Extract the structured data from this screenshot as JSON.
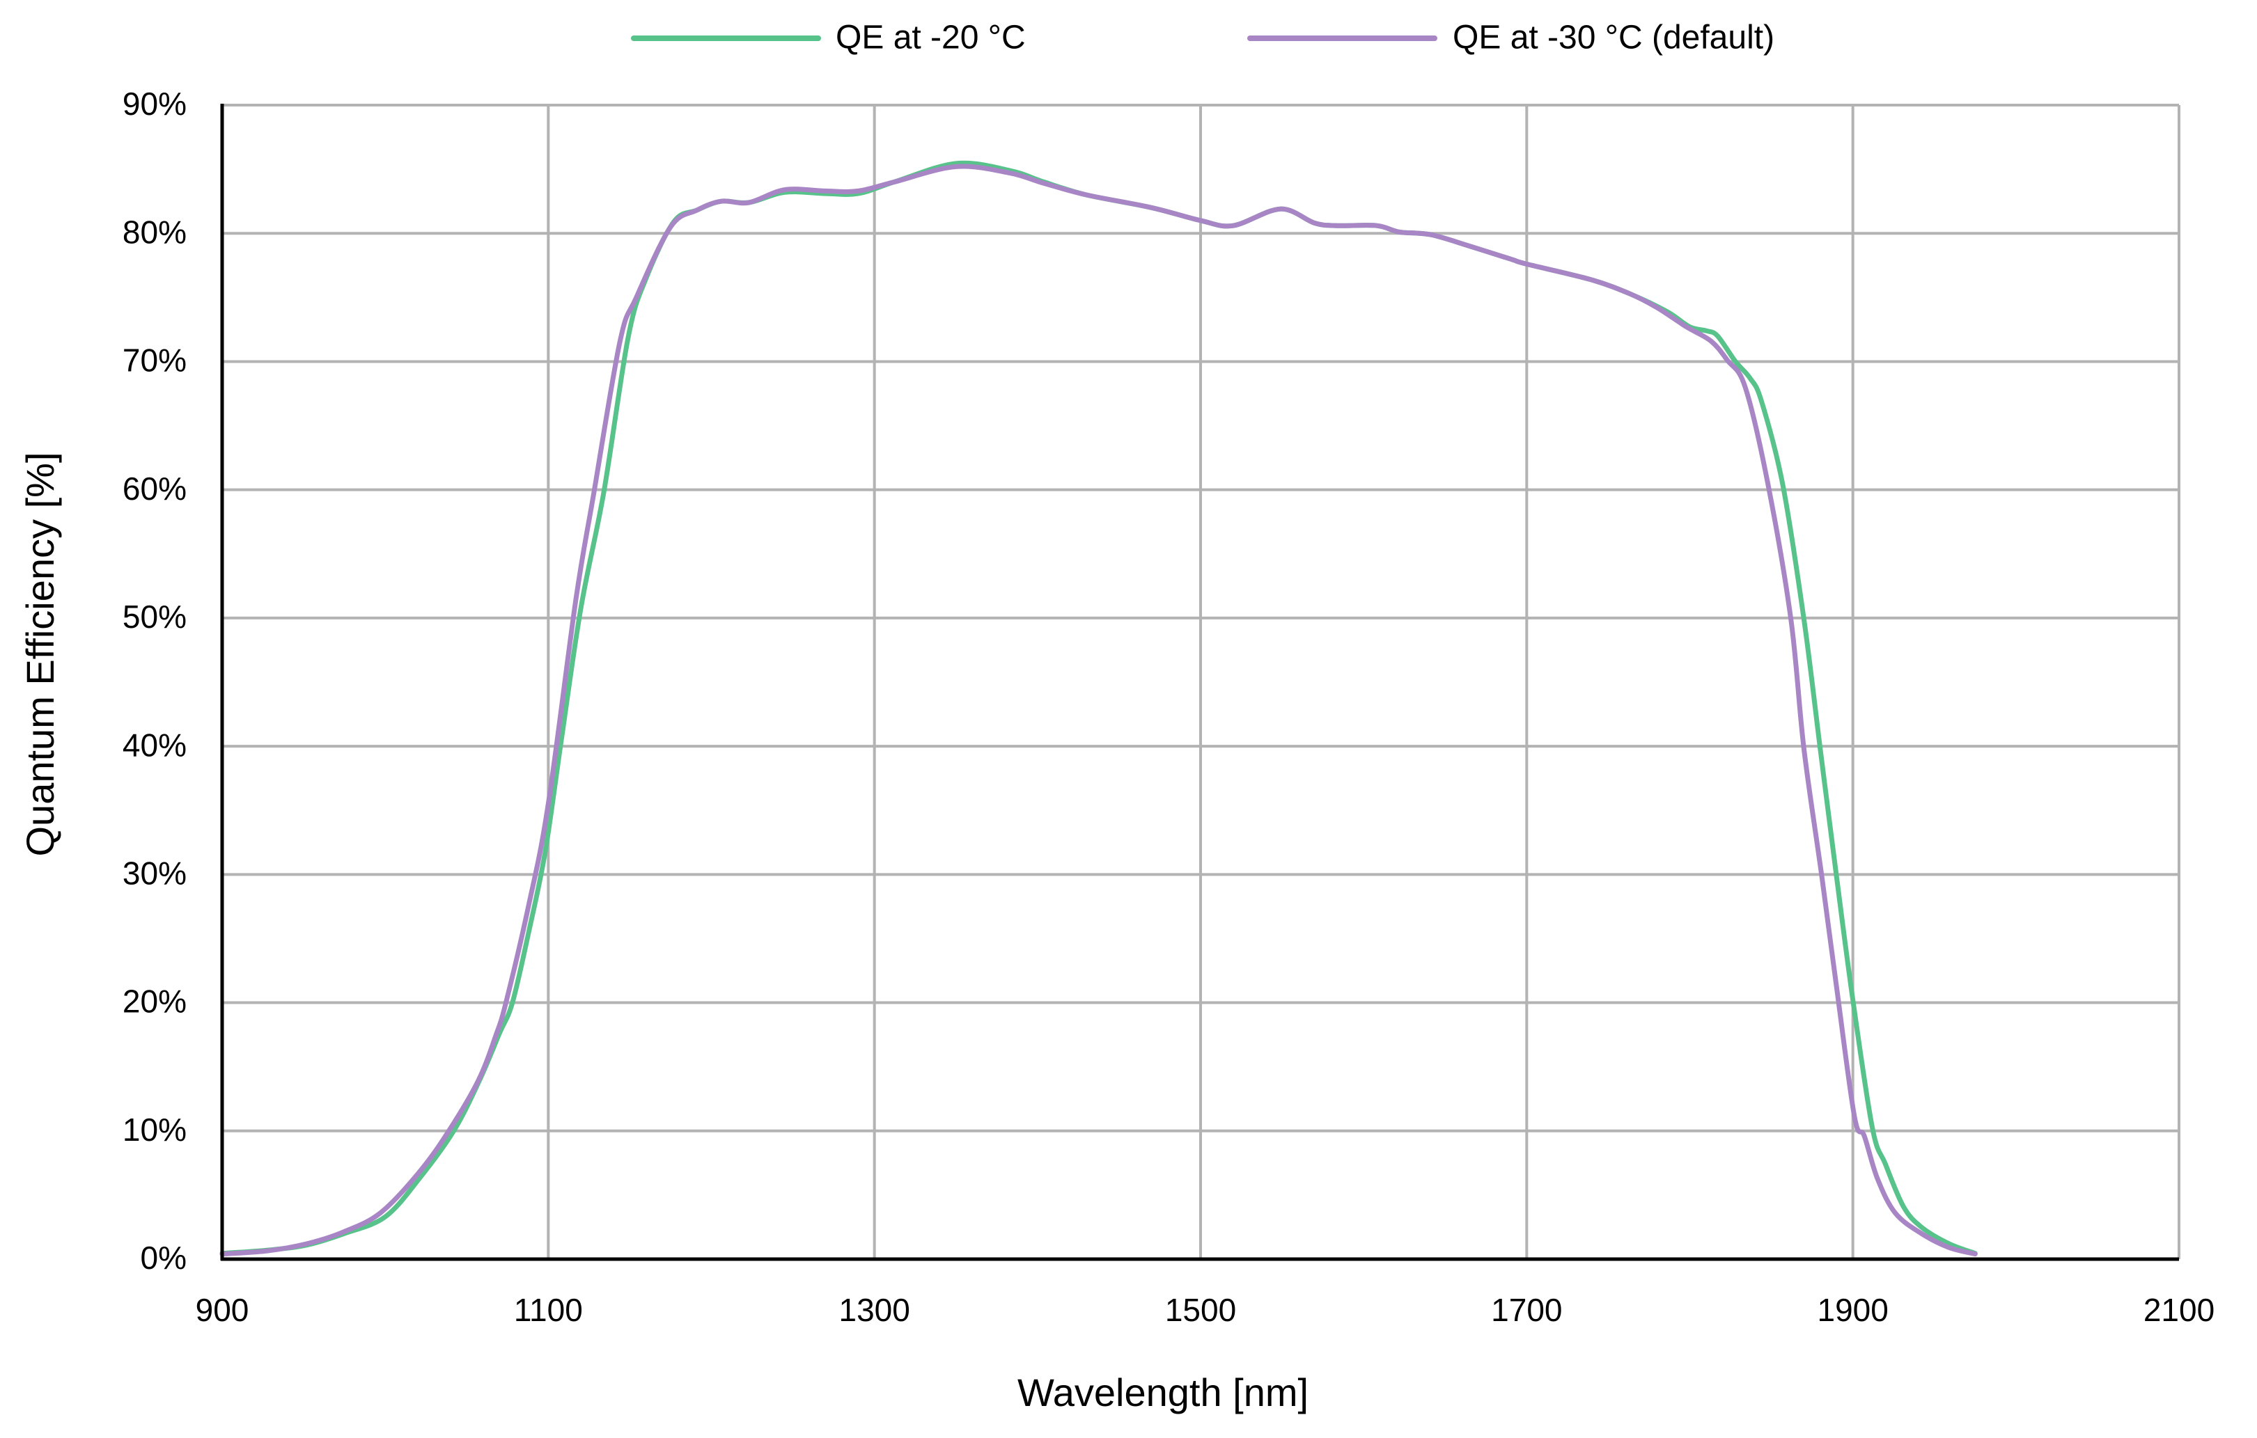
{
  "chart_data": {
    "type": "line",
    "title": "",
    "xlabel": "Wavelength [nm]",
    "ylabel": "Quantum Efficiency [%]",
    "xlim": [
      900,
      2100
    ],
    "ylim": [
      0,
      90
    ],
    "x_ticks": [
      900,
      1100,
      1300,
      1500,
      1700,
      1900,
      2100
    ],
    "x_tick_labels": [
      "900",
      "1100",
      "1300",
      "1500",
      "1700",
      "1900",
      "2100"
    ],
    "y_ticks": [
      0,
      10,
      20,
      30,
      40,
      50,
      60,
      70,
      80,
      90
    ],
    "y_tick_labels": [
      "0%",
      "10%",
      "20%",
      "30%",
      "40%",
      "50%",
      "60%",
      "70%",
      "80%",
      "90%"
    ],
    "grid": true,
    "legend_position": "top",
    "series": [
      {
        "name": "QE at -20 °C",
        "color": "#57C28A",
        "points": [
          [
            900,
            0.45
          ],
          [
            928,
            0.7
          ],
          [
            952,
            1.1
          ],
          [
            975,
            2.0
          ],
          [
            1000,
            3.3
          ],
          [
            1021,
            6.3
          ],
          [
            1042,
            10.0
          ],
          [
            1058,
            14.0
          ],
          [
            1070,
            17.6
          ],
          [
            1078,
            20.0
          ],
          [
            1088,
            25.5
          ],
          [
            1098,
            31.7
          ],
          [
            1108,
            40.5
          ],
          [
            1120,
            50.8
          ],
          [
            1134,
            59.8
          ],
          [
            1149,
            71.9
          ],
          [
            1160,
            76.5
          ],
          [
            1177,
            80.9
          ],
          [
            1191,
            81.8
          ],
          [
            1206,
            82.5
          ],
          [
            1223,
            82.4
          ],
          [
            1245,
            83.2
          ],
          [
            1270,
            83.1
          ],
          [
            1290,
            83.1
          ],
          [
            1312,
            84.0
          ],
          [
            1350,
            85.45
          ],
          [
            1383,
            84.9
          ],
          [
            1404,
            84.0
          ],
          [
            1430,
            83.0
          ],
          [
            1470,
            82.0
          ],
          [
            1500,
            81.0
          ],
          [
            1520,
            80.6
          ],
          [
            1549,
            81.9
          ],
          [
            1570,
            80.8
          ],
          [
            1584,
            80.6
          ],
          [
            1608,
            80.6
          ],
          [
            1622,
            80.1
          ],
          [
            1641,
            79.9
          ],
          [
            1665,
            79.0
          ],
          [
            1690,
            78.0
          ],
          [
            1700,
            77.6
          ],
          [
            1739,
            76.4
          ],
          [
            1763,
            75.3
          ],
          [
            1786,
            73.9
          ],
          [
            1800,
            72.7
          ],
          [
            1810,
            72.4
          ],
          [
            1817,
            72.0
          ],
          [
            1828,
            70.0
          ],
          [
            1837,
            68.7
          ],
          [
            1844,
            66.9
          ],
          [
            1857,
            60.4
          ],
          [
            1870,
            49.9
          ],
          [
            1880,
            39.8
          ],
          [
            1890,
            29.8
          ],
          [
            1900,
            20.2
          ],
          [
            1912,
            10.2
          ],
          [
            1920,
            7.4
          ],
          [
            1931,
            4.1
          ],
          [
            1942,
            2.5
          ],
          [
            1959,
            1.2
          ],
          [
            1975,
            0.45
          ]
        ]
      },
      {
        "name": "QE at -30 °C (default)",
        "color": "#A885C4",
        "points": [
          [
            900,
            0.4
          ],
          [
            928,
            0.65
          ],
          [
            952,
            1.2
          ],
          [
            974,
            2.1
          ],
          [
            997,
            3.6
          ],
          [
            1021,
            6.8
          ],
          [
            1039,
            10.0
          ],
          [
            1057,
            13.9
          ],
          [
            1068,
            17.5
          ],
          [
            1074,
            20.0
          ],
          [
            1088,
            27.6
          ],
          [
            1100,
            35.5
          ],
          [
            1117,
            51.5
          ],
          [
            1128,
            59.8
          ],
          [
            1144,
            71.6
          ],
          [
            1154,
            75.0
          ],
          [
            1175,
            80.5
          ],
          [
            1191,
            81.8
          ],
          [
            1206,
            82.5
          ],
          [
            1223,
            82.4
          ],
          [
            1245,
            83.4
          ],
          [
            1270,
            83.3
          ],
          [
            1290,
            83.3
          ],
          [
            1312,
            84.0
          ],
          [
            1350,
            85.2
          ],
          [
            1383,
            84.7
          ],
          [
            1404,
            83.9
          ],
          [
            1430,
            83.0
          ],
          [
            1470,
            82.0
          ],
          [
            1500,
            81.0
          ],
          [
            1520,
            80.6
          ],
          [
            1549,
            81.9
          ],
          [
            1570,
            80.8
          ],
          [
            1584,
            80.6
          ],
          [
            1608,
            80.6
          ],
          [
            1622,
            80.1
          ],
          [
            1641,
            79.9
          ],
          [
            1665,
            79.0
          ],
          [
            1690,
            78.0
          ],
          [
            1700,
            77.6
          ],
          [
            1739,
            76.4
          ],
          [
            1763,
            75.3
          ],
          [
            1780,
            74.2
          ],
          [
            1798,
            72.7
          ],
          [
            1813,
            71.6
          ],
          [
            1823,
            70.1
          ],
          [
            1834,
            68.0
          ],
          [
            1848,
            60.4
          ],
          [
            1862,
            49.9
          ],
          [
            1870,
            39.8
          ],
          [
            1881,
            29.8
          ],
          [
            1890,
            21.2
          ],
          [
            1901,
            11.1
          ],
          [
            1907,
            9.6
          ],
          [
            1915,
            6.3
          ],
          [
            1926,
            3.6
          ],
          [
            1942,
            2.0
          ],
          [
            1959,
            0.9
          ],
          [
            1975,
            0.4
          ]
        ]
      }
    ]
  },
  "legend": {
    "items": [
      {
        "label": "QE at -20 °C",
        "color": "#57C28A"
      },
      {
        "label": "QE at -30 °C (default)",
        "color": "#A885C4"
      }
    ]
  },
  "axes": {
    "x_title": "Wavelength [nm]",
    "y_title": "Quantum Efficiency [%]"
  }
}
